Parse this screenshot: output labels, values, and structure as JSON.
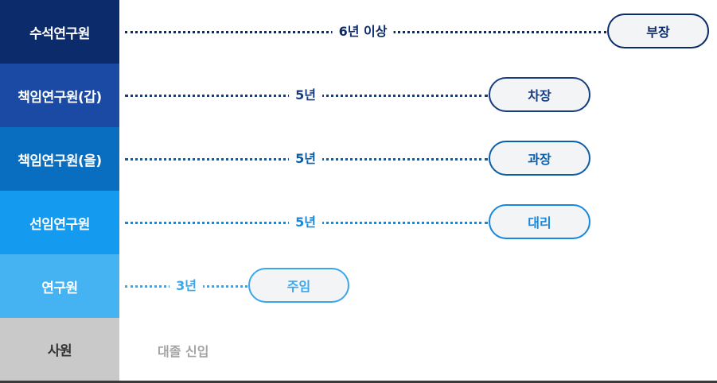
{
  "rows": [
    {
      "label": "수석연구원",
      "years": "6년 이상",
      "title": "부장",
      "color": "#0c2b6b",
      "text_color": "#0c2b6b"
    },
    {
      "label": "책임연구원(갑)",
      "years": "5년",
      "title": "차장",
      "color": "#1a4aa3",
      "text_color": "#183d7f"
    },
    {
      "label": "책임연구원(을)",
      "years": "5년",
      "title": "과장",
      "color": "#0a6ec0",
      "text_color": "#0a5ea8"
    },
    {
      "label": "선임연구원",
      "years": "5년",
      "title": "대리",
      "color": "#149bf0",
      "text_color": "#1588e0"
    },
    {
      "label": "연구원",
      "years": "3년",
      "title": "주임",
      "color": "#45b2f2",
      "text_color": "#3aa6ea"
    },
    {
      "label": "사원",
      "years": "",
      "title": "대졸 신입",
      "color": "#c9c9c9",
      "text_color": "#a3a3a3"
    }
  ]
}
